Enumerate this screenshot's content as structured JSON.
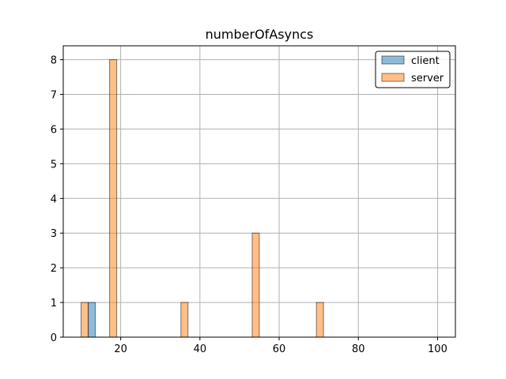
{
  "chart_data": {
    "type": "bar",
    "title": "numberOfAsyncs",
    "xlabel": "",
    "ylabel": "",
    "xlim": [
      5.5,
      104.5
    ],
    "ylim": [
      0,
      8.4
    ],
    "xticks": [
      20,
      40,
      60,
      80,
      100
    ],
    "yticks": [
      0,
      1,
      2,
      3,
      4,
      5,
      6,
      7,
      8
    ],
    "grid": true,
    "legend_position": "top-right",
    "bar_width": 1.8,
    "series": [
      {
        "name": "client",
        "color": "#1f77b4",
        "bars": [
          {
            "x": 11.8,
            "value": 1
          }
        ]
      },
      {
        "name": "server",
        "color": "#ff7f0e",
        "bars": [
          {
            "x": 10.0,
            "value": 1
          },
          {
            "x": 17.2,
            "value": 8
          },
          {
            "x": 35.2,
            "value": 1
          },
          {
            "x": 53.2,
            "value": 3
          },
          {
            "x": 69.4,
            "value": 1
          }
        ]
      }
    ]
  }
}
